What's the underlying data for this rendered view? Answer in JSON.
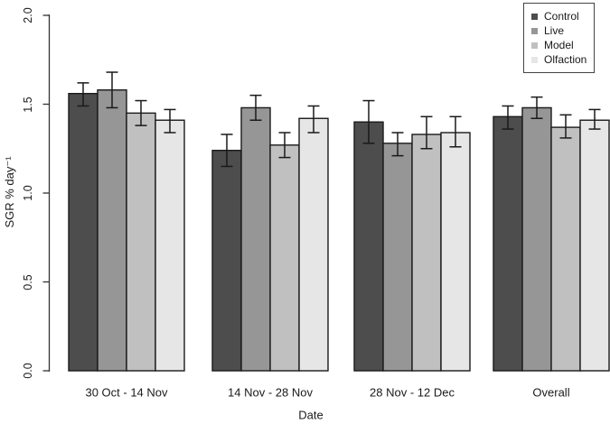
{
  "chart_data": {
    "type": "bar",
    "title": "",
    "xlabel": "Date",
    "ylabel": "SGR % day⁻¹",
    "ylim": [
      0,
      2.0
    ],
    "yticks": [
      "0.0",
      "0.5",
      "1.0",
      "1.5",
      "2.0"
    ],
    "categories": [
      "30 Oct - 14 Nov",
      "14 Nov - 28 Nov",
      "28 Nov - 12 Dec",
      "Overall"
    ],
    "grid": false,
    "legend_position": "top-right",
    "axis_color": "#333333",
    "bar_border_color": "#1a1a1a",
    "error_bar_color": "#1a1a1a",
    "series": [
      {
        "name": "Control",
        "color": "#4D4D4D",
        "values": [
          1.56,
          1.24,
          1.4,
          1.43
        ],
        "error_low": [
          1.49,
          1.15,
          1.28,
          1.36
        ],
        "error_high": [
          1.62,
          1.33,
          1.52,
          1.49
        ]
      },
      {
        "name": "Live",
        "color": "#969696",
        "values": [
          1.58,
          1.48,
          1.28,
          1.48
        ],
        "error_low": [
          1.48,
          1.41,
          1.21,
          1.42
        ],
        "error_high": [
          1.68,
          1.55,
          1.34,
          1.54
        ]
      },
      {
        "name": "Model",
        "color": "#C0C0C0",
        "values": [
          1.45,
          1.27,
          1.33,
          1.37
        ],
        "error_low": [
          1.38,
          1.2,
          1.25,
          1.31
        ],
        "error_high": [
          1.52,
          1.34,
          1.43,
          1.44
        ]
      },
      {
        "name": "Olfaction",
        "color": "#E6E6E6",
        "values": [
          1.41,
          1.42,
          1.34,
          1.41
        ],
        "error_low": [
          1.34,
          1.34,
          1.26,
          1.36
        ],
        "error_high": [
          1.47,
          1.49,
          1.43,
          1.47
        ]
      }
    ]
  }
}
